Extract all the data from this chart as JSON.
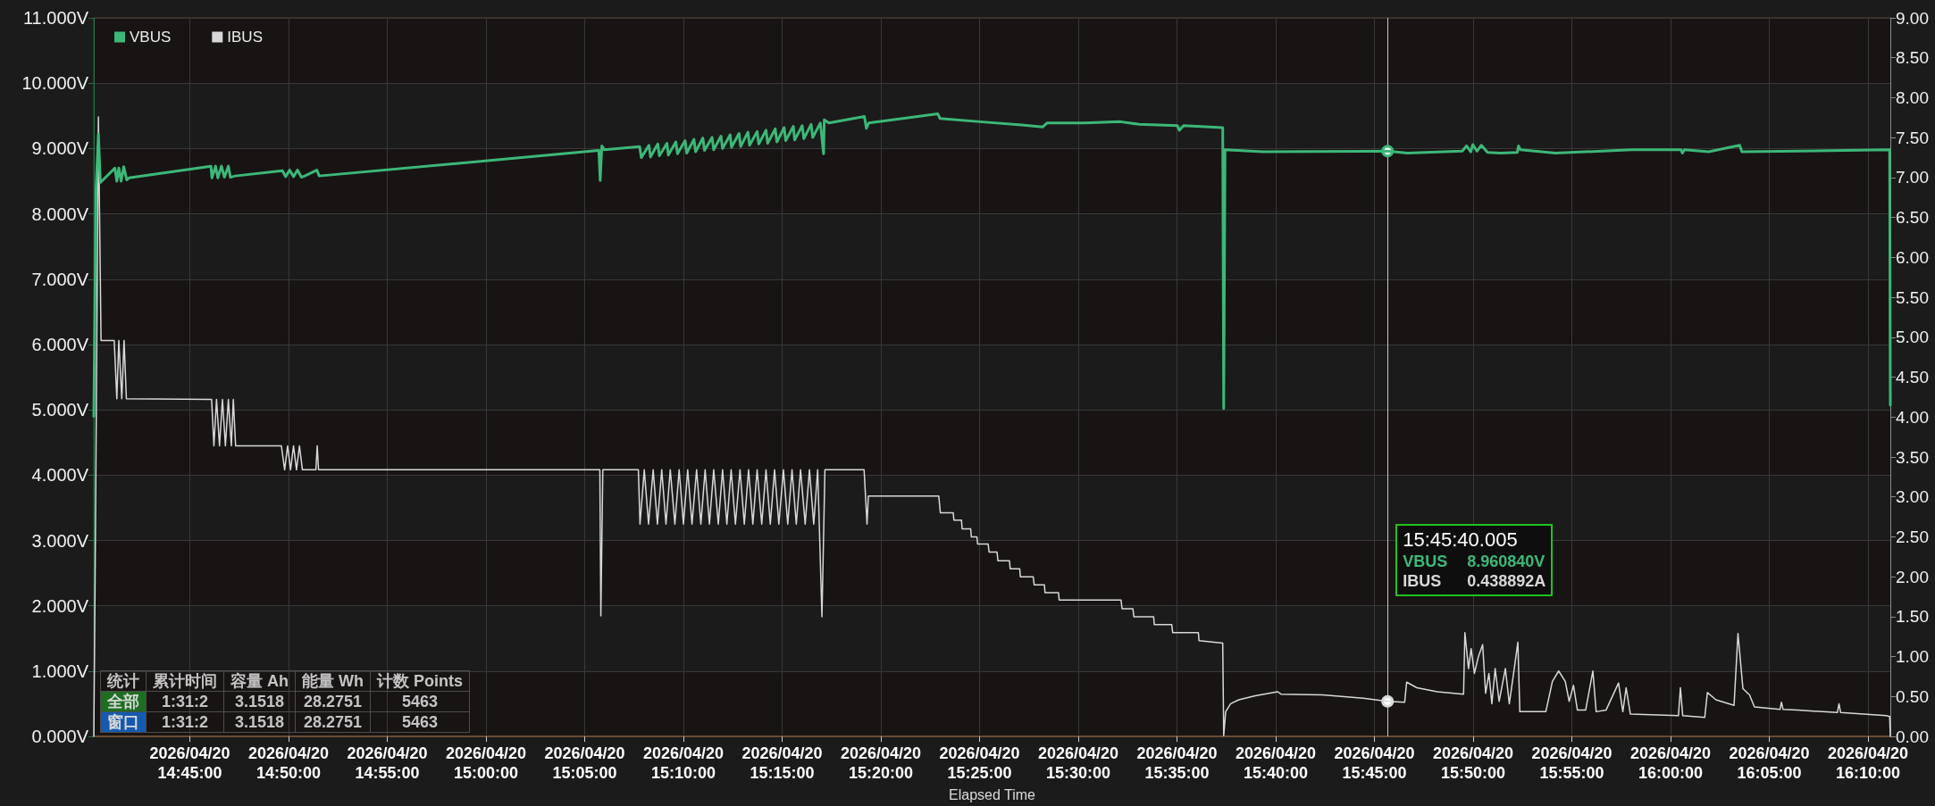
{
  "chart_data": {
    "type": "line",
    "xlabel": "Elapsed Time",
    "xlim": [
      "2026-04-20T14:40:08",
      "2026-04-20T16:11:08"
    ],
    "xticks": [
      {
        "value": "2026-04-20T14:45:00",
        "label": "2026/04/20\n14:45:00"
      },
      {
        "value": "2026-04-20T14:50:00",
        "label": "2026/04/20\n14:50:00"
      },
      {
        "value": "2026-04-20T14:55:00",
        "label": "2026/04/20\n14:55:00"
      },
      {
        "value": "2026-04-20T15:00:00",
        "label": "2026/04/20\n15:00:00"
      },
      {
        "value": "2026-04-20T15:05:00",
        "label": "2026/04/20\n15:05:00"
      },
      {
        "value": "2026-04-20T15:10:00",
        "label": "2026/04/20\n15:10:00"
      },
      {
        "value": "2026-04-20T15:15:00",
        "label": "2026/04/20\n15:15:00"
      },
      {
        "value": "2026-04-20T15:20:00",
        "label": "2026/04/20\n15:20:00"
      },
      {
        "value": "2026-04-20T15:25:00",
        "label": "2026/04/20\n15:25:00"
      },
      {
        "value": "2026-04-20T15:30:00",
        "label": "2026/04/20\n15:30:00"
      },
      {
        "value": "2026-04-20T15:35:00",
        "label": "2026/04/20\n15:35:00"
      },
      {
        "value": "2026-04-20T15:40:00",
        "label": "2026/04/20\n15:40:00"
      },
      {
        "value": "2026-04-20T15:45:00",
        "label": "2026/04/20\n15:45:00"
      },
      {
        "value": "2026-04-20T15:50:00",
        "label": "2026/04/20\n15:50:00"
      },
      {
        "value": "2026-04-20T15:55:00",
        "label": "2026/04/20\n15:55:00"
      },
      {
        "value": "2026-04-20T16:00:00",
        "label": "2026/04/20\n16:00:00"
      },
      {
        "value": "2026-04-20T16:05:00",
        "label": "2026/04/20\n16:05:00"
      },
      {
        "value": "2026-04-20T16:10:00",
        "label": "2026/04/20\n16:10:00"
      }
    ],
    "ylim": [
      0,
      11
    ],
    "yticks": [
      {
        "value": 0,
        "label": "0.000V"
      },
      {
        "value": 1,
        "label": "1.000V"
      },
      {
        "value": 2,
        "label": "2.000V"
      },
      {
        "value": 3,
        "label": "3.000V"
      },
      {
        "value": 4,
        "label": "4.000V"
      },
      {
        "value": 5,
        "label": "5.000V"
      },
      {
        "value": 6,
        "label": "6.000V"
      },
      {
        "value": 7,
        "label": "7.000V"
      },
      {
        "value": 8,
        "label": "8.000V"
      },
      {
        "value": 9,
        "label": "9.000V"
      },
      {
        "value": 10,
        "label": "10.000V"
      },
      {
        "value": 11,
        "label": "11.000V"
      }
    ],
    "y2lim": [
      0,
      9
    ],
    "y2ticks": [
      {
        "value": 0,
        "label": "0.00"
      },
      {
        "value": 0.5,
        "label": "0.50"
      },
      {
        "value": 1,
        "label": "1.00"
      },
      {
        "value": 1.5,
        "label": "1.50"
      },
      {
        "value": 2,
        "label": "2.00"
      },
      {
        "value": 2.5,
        "label": "2.50"
      },
      {
        "value": 3,
        "label": "3.00"
      },
      {
        "value": 3.5,
        "label": "3.50"
      },
      {
        "value": 4,
        "label": "4.00"
      },
      {
        "value": 4.5,
        "label": "4.50"
      },
      {
        "value": 5,
        "label": "5.00"
      },
      {
        "value": 5.5,
        "label": "5.50"
      },
      {
        "value": 6,
        "label": "6.00"
      },
      {
        "value": 6.5,
        "label": "6.50"
      },
      {
        "value": 7,
        "label": "7.00"
      },
      {
        "value": 7.5,
        "label": "7.50"
      },
      {
        "value": 8,
        "label": "8.00"
      },
      {
        "value": 8.5,
        "label": "8.50"
      },
      {
        "value": 9,
        "label": "9.00"
      }
    ],
    "grid": true,
    "legend": "top left",
    "series": [
      {
        "name": "VBUS",
        "color": "#3cb878",
        "x": [
          "2026-04-20T14:40:08",
          "2026-04-20T14:40:15",
          "2026-04-20T14:40:22",
          "2026-04-20T14:40:28",
          "2026-04-20T14:41:12",
          "2026-04-20T14:41:18",
          "2026-04-20T14:41:24",
          "2026-04-20T14:41:31",
          "2026-04-20T14:41:39",
          "2026-04-20T14:41:48",
          "2026-04-20T14:41:55",
          "2026-04-20T14:46:04",
          "2026-04-20T14:46:07",
          "2026-04-20T14:46:18",
          "2026-04-20T14:46:25",
          "2026-04-20T14:46:36",
          "2026-04-20T14:46:45",
          "2026-04-20T14:46:57",
          "2026-04-20T14:47:03",
          "2026-04-20T14:47:18",
          "2026-04-20T14:49:41",
          "2026-04-20T14:49:51",
          "2026-04-20T14:50:03",
          "2026-04-20T14:50:15",
          "2026-04-20T14:50:27",
          "2026-04-20T14:50:39",
          "2026-04-20T14:50:49",
          "2026-04-20T14:51:26",
          "2026-04-20T14:51:33",
          "2026-04-20T15:05:43",
          "2026-04-20T15:05:47",
          "2026-04-20T15:05:52",
          "2026-04-20T15:06:00",
          "2026-04-20T15:07:47",
          "2026-04-20T15:07:52",
          "2026-04-20T15:08:15",
          "2026-04-20T15:08:20",
          "2026-04-20T15:08:42",
          "2026-04-20T15:08:47",
          "2026-04-20T15:09:10",
          "2026-04-20T15:09:14",
          "2026-04-20T15:09:37",
          "2026-04-20T15:09:42",
          "2026-04-20T15:10:05",
          "2026-04-20T15:10:10",
          "2026-04-20T15:10:32",
          "2026-04-20T15:10:37",
          "2026-04-20T15:10:59",
          "2026-04-20T15:11:04",
          "2026-04-20T15:11:27",
          "2026-04-20T15:11:32",
          "2026-04-20T15:11:54",
          "2026-04-20T15:11:59",
          "2026-04-20T15:12:22",
          "2026-04-20T15:12:26",
          "2026-04-20T15:12:49",
          "2026-04-20T15:12:54",
          "2026-04-20T15:13:16",
          "2026-04-20T15:13:21",
          "2026-04-20T15:13:44",
          "2026-04-20T15:13:49",
          "2026-04-20T15:14:11",
          "2026-04-20T15:14:16",
          "2026-04-20T15:14:39",
          "2026-04-20T15:14:44",
          "2026-04-20T15:15:06",
          "2026-04-20T15:15:11",
          "2026-04-20T15:15:34",
          "2026-04-20T15:15:38",
          "2026-04-20T15:16:01",
          "2026-04-20T15:16:06",
          "2026-04-20T15:16:28",
          "2026-04-20T15:16:33",
          "2026-04-20T15:16:56",
          "2026-04-20T15:17:06",
          "2026-04-20T15:17:08",
          "2026-04-20T15:17:22",
          "2026-04-20T15:19:10",
          "2026-04-20T15:19:16",
          "2026-04-20T15:19:23",
          "2026-04-20T15:22:53",
          "2026-04-20T15:23:00",
          "2026-04-20T15:25:01",
          "2026-04-20T15:27:08",
          "2026-04-20T15:28:12",
          "2026-04-20T15:28:25",
          "2026-04-20T15:30:20",
          "2026-04-20T15:32:08",
          "2026-04-20T15:33:05",
          "2026-04-20T15:35:01",
          "2026-04-20T15:35:07",
          "2026-04-20T15:35:20",
          "2026-04-20T15:37:19",
          "2026-04-20T15:37:22",
          "2026-04-20T15:37:26",
          "2026-04-20T15:39:22",
          "2026-04-20T15:45:40",
          "2026-04-20T15:46:40",
          "2026-04-20T15:49:27",
          "2026-04-20T15:49:40",
          "2026-04-20T15:49:53",
          "2026-04-20T15:49:59",
          "2026-04-20T15:50:12",
          "2026-04-20T15:50:25",
          "2026-04-20T15:50:44",
          "2026-04-20T15:51:23",
          "2026-04-20T15:52:14",
          "2026-04-20T15:52:18",
          "2026-04-20T15:52:24",
          "2026-04-20T15:54:10",
          "2026-04-20T15:58:02",
          "2026-04-20T16:00:32",
          "2026-04-20T16:00:36",
          "2026-04-20T16:00:42",
          "2026-04-20T16:01:56",
          "2026-04-20T16:03:30",
          "2026-04-20T16:03:37",
          "2026-04-20T16:11:06",
          "2026-04-20T16:11:08"
        ],
        "values": [
          4.9,
          8.4,
          9.22,
          8.48,
          8.7,
          8.5,
          8.7,
          8.5,
          8.72,
          8.52,
          8.55,
          8.73,
          8.55,
          8.73,
          8.55,
          8.73,
          8.56,
          8.73,
          8.56,
          8.58,
          8.66,
          8.57,
          8.67,
          8.57,
          8.67,
          8.56,
          8.58,
          8.67,
          8.58,
          8.97,
          8.51,
          9.04,
          8.98,
          9.03,
          8.86,
          9.05,
          8.87,
          9.07,
          8.89,
          9.08,
          8.9,
          9.1,
          8.92,
          9.12,
          8.93,
          9.14,
          8.95,
          9.16,
          8.97,
          9.17,
          8.98,
          9.19,
          9.0,
          9.21,
          9.02,
          9.23,
          9.03,
          9.25,
          9.05,
          9.26,
          9.07,
          9.28,
          9.08,
          9.3,
          9.1,
          9.32,
          9.12,
          9.34,
          9.13,
          9.35,
          9.15,
          9.37,
          9.17,
          9.39,
          8.92,
          9.44,
          9.39,
          9.49,
          9.31,
          9.39,
          9.53,
          9.46,
          9.41,
          9.36,
          9.33,
          9.39,
          9.39,
          9.41,
          9.37,
          9.35,
          9.28,
          9.35,
          9.32,
          5.02,
          8.98,
          8.95,
          8.96,
          8.93,
          8.96,
          9.04,
          8.95,
          9.06,
          8.96,
          9.05,
          8.94,
          8.93,
          8.94,
          9.04,
          8.98,
          8.93,
          8.98,
          8.98,
          8.93,
          8.98,
          8.95,
          9.05,
          8.95,
          8.98,
          5.07
        ]
      },
      {
        "name": "IBUS",
        "color": "#d8d8d8",
        "axis": "y2",
        "x": [
          "2026-04-20T14:40:08",
          "2026-04-20T14:40:12",
          "2026-04-20T14:40:22",
          "2026-04-20T14:40:30",
          "2026-04-20T14:41:10",
          "2026-04-20T14:41:18",
          "2026-04-20T14:41:24",
          "2026-04-20T14:41:33",
          "2026-04-20T14:41:40",
          "2026-04-20T14:41:47",
          "2026-04-20T14:46:06",
          "2026-04-20T14:46:13",
          "2026-04-20T14:46:21",
          "2026-04-20T14:46:30",
          "2026-04-20T14:46:39",
          "2026-04-20T14:46:48",
          "2026-04-20T14:46:57",
          "2026-04-20T14:47:06",
          "2026-04-20T14:47:12",
          "2026-04-20T14:47:19",
          "2026-04-20T14:49:38",
          "2026-04-20T14:49:48",
          "2026-04-20T14:49:57",
          "2026-04-20T14:50:06",
          "2026-04-20T14:50:15",
          "2026-04-20T14:50:24",
          "2026-04-20T14:50:33",
          "2026-04-20T14:50:42",
          "2026-04-20T14:51:23",
          "2026-04-20T14:51:27",
          "2026-04-20T14:51:31",
          "2026-04-20T15:05:46",
          "2026-04-20T15:05:49",
          "2026-04-20T15:05:55",
          "2026-04-20T15:07:43",
          "2026-04-20T15:07:48",
          "2026-04-20T15:08:01",
          "2026-04-20T15:08:14",
          "2026-04-20T15:08:28",
          "2026-04-20T15:08:41",
          "2026-04-20T15:08:54",
          "2026-04-20T15:09:07",
          "2026-04-20T15:09:20",
          "2026-04-20T15:09:34",
          "2026-04-20T15:09:47",
          "2026-04-20T15:10:00",
          "2026-04-20T15:10:13",
          "2026-04-20T15:10:26",
          "2026-04-20T15:10:40",
          "2026-04-20T15:10:53",
          "2026-04-20T15:11:06",
          "2026-04-20T15:11:19",
          "2026-04-20T15:11:32",
          "2026-04-20T15:11:46",
          "2026-04-20T15:11:59",
          "2026-04-20T15:12:12",
          "2026-04-20T15:12:25",
          "2026-04-20T15:12:38",
          "2026-04-20T15:12:52",
          "2026-04-20T15:13:05",
          "2026-04-20T15:13:18",
          "2026-04-20T15:13:31",
          "2026-04-20T15:13:44",
          "2026-04-20T15:13:58",
          "2026-04-20T15:14:11",
          "2026-04-20T15:14:24",
          "2026-04-20T15:14:37",
          "2026-04-20T15:14:50",
          "2026-04-20T15:15:04",
          "2026-04-20T15:15:17",
          "2026-04-20T15:15:30",
          "2026-04-20T15:15:43",
          "2026-04-20T15:15:56",
          "2026-04-20T15:16:10",
          "2026-04-20T15:16:23",
          "2026-04-20T15:16:36",
          "2026-04-20T15:16:48",
          "2026-04-20T15:17:01",
          "2026-04-20T15:17:10",
          "2026-04-20T15:19:09",
          "2026-04-20T15:19:18",
          "2026-04-20T15:19:22",
          "2026-04-20T15:22:56",
          "2026-04-20T15:23:01",
          "2026-04-20T15:23:40",
          "2026-04-20T15:23:42",
          "2026-04-20T15:24:05",
          "2026-04-20T15:24:07",
          "2026-04-20T15:24:33",
          "2026-04-20T15:24:35",
          "2026-04-20T15:24:52",
          "2026-04-20T15:24:54",
          "2026-04-20T15:25:26",
          "2026-04-20T15:25:29",
          "2026-04-20T15:25:53",
          "2026-04-20T15:25:56",
          "2026-04-20T15:26:31",
          "2026-04-20T15:26:33",
          "2026-04-20T15:27:02",
          "2026-04-20T15:27:04",
          "2026-04-20T15:27:43",
          "2026-04-20T15:27:46",
          "2026-04-20T15:28:17",
          "2026-04-20T15:28:19",
          "2026-04-20T15:29:00",
          "2026-04-20T15:29:02",
          "2026-04-20T15:32:10",
          "2026-04-20T15:32:13",
          "2026-04-20T15:32:46",
          "2026-04-20T15:32:49",
          "2026-04-20T15:33:49",
          "2026-04-20T15:33:51",
          "2026-04-20T15:34:44",
          "2026-04-20T15:34:47",
          "2026-04-20T15:36:05",
          "2026-04-20T15:36:07",
          "2026-04-20T15:37:19",
          "2026-04-20T15:37:22",
          "2026-04-20T15:37:28",
          "2026-04-20T15:37:43",
          "2026-04-20T15:38:08",
          "2026-04-20T15:38:58",
          "2026-04-20T15:40:06",
          "2026-04-20T15:40:16",
          "2026-04-20T15:42:22",
          "2026-04-20T15:44:26",
          "2026-04-20T15:45:40",
          "2026-04-20T15:46:32",
          "2026-04-20T15:46:38",
          "2026-04-20T15:47:09",
          "2026-04-20T15:48:11",
          "2026-04-20T15:49:31",
          "2026-04-20T15:49:35",
          "2026-04-20T15:49:46",
          "2026-04-20T15:49:54",
          "2026-04-20T15:50:04",
          "2026-04-20T15:50:16",
          "2026-04-20T15:50:29",
          "2026-04-20T15:50:38",
          "2026-04-20T15:50:48",
          "2026-04-20T15:50:57",
          "2026-04-20T15:51:07",
          "2026-04-20T15:51:19",
          "2026-04-20T15:51:38",
          "2026-04-20T15:51:50",
          "2026-04-20T15:52:03",
          "2026-04-20T15:52:16",
          "2026-04-20T15:52:22",
          "2026-04-20T15:53:41",
          "2026-04-20T15:54:01",
          "2026-04-20T15:54:20",
          "2026-04-20T15:54:40",
          "2026-04-20T15:54:52",
          "2026-04-20T15:55:05",
          "2026-04-20T15:55:17",
          "2026-04-20T15:55:42",
          "2026-04-20T15:56:04",
          "2026-04-20T15:56:14",
          "2026-04-20T15:56:44",
          "2026-04-20T15:57:22",
          "2026-04-20T15:57:35",
          "2026-04-20T15:57:45",
          "2026-04-20T15:57:58",
          "2026-04-20T16:00:24",
          "2026-04-20T16:00:30",
          "2026-04-20T16:00:37",
          "2026-04-20T16:01:44",
          "2026-04-20T16:01:52",
          "2026-04-20T16:02:18",
          "2026-04-20T16:03:13",
          "2026-04-20T16:03:25",
          "2026-04-20T16:03:40",
          "2026-04-20T16:04:00",
          "2026-04-20T16:04:15",
          "2026-04-20T16:05:33",
          "2026-04-20T16:05:37",
          "2026-04-20T16:05:42",
          "2026-04-20T16:06:26",
          "2026-04-20T16:08:27",
          "2026-04-20T16:08:32",
          "2026-04-20T16:08:37",
          "2026-04-20T16:10:56",
          "2026-04-20T16:11:06",
          "2026-04-20T16:11:08"
        ],
        "values": [
          0,
          1.96,
          7.76,
          4.96,
          4.96,
          4.23,
          4.96,
          4.23,
          4.96,
          4.23,
          4.22,
          3.64,
          4.22,
          3.64,
          4.22,
          3.64,
          4.22,
          3.64,
          4.22,
          3.64,
          3.64,
          3.34,
          3.64,
          3.34,
          3.64,
          3.34,
          3.64,
          3.34,
          3.34,
          3.64,
          3.34,
          3.34,
          1.51,
          3.34,
          3.34,
          2.66,
          3.34,
          2.66,
          3.34,
          2.66,
          3.34,
          2.66,
          3.34,
          2.66,
          3.34,
          2.66,
          3.34,
          2.66,
          3.34,
          2.66,
          3.34,
          2.66,
          3.34,
          2.66,
          3.34,
          2.66,
          3.34,
          2.66,
          3.34,
          2.66,
          3.34,
          2.66,
          3.34,
          2.66,
          3.34,
          2.66,
          3.34,
          2.66,
          3.34,
          2.66,
          3.34,
          2.66,
          3.34,
          2.66,
          3.34,
          2.66,
          3.34,
          1.5,
          3.34,
          3.34,
          2.66,
          3.01,
          3.01,
          2.8,
          2.8,
          2.71,
          2.71,
          2.6,
          2.6,
          2.5,
          2.5,
          2.41,
          2.41,
          2.31,
          2.31,
          2.2,
          2.2,
          2.1,
          2.1,
          2.0,
          2.0,
          1.9,
          1.9,
          1.8,
          1.8,
          1.71,
          1.71,
          1.6,
          1.6,
          1.5,
          1.5,
          1.4,
          1.4,
          1.3,
          1.3,
          1.2,
          1.17,
          0.01,
          0.31,
          0.41,
          0.46,
          0.51,
          0.56,
          0.53,
          0.52,
          0.48,
          0.44,
          0.43,
          0.68,
          0.61,
          0.56,
          0.53,
          1.3,
          0.85,
          1.1,
          0.79,
          1.0,
          1.15,
          0.54,
          0.79,
          0.41,
          0.85,
          0.44,
          0.85,
          0.41,
          0.79,
          1.18,
          0.31,
          0.31,
          0.69,
          0.82,
          0.69,
          0.44,
          0.64,
          0.33,
          0.33,
          0.82,
          0.31,
          0.33,
          0.67,
          0.31,
          0.61,
          0.28,
          0.26,
          0.61,
          0.26,
          0.24,
          0.55,
          0.46,
          0.39,
          1.29,
          0.6,
          0.52,
          0.37,
          0.34,
          0.43,
          0.34,
          0.33,
          0.3,
          0.41,
          0.3,
          0.26,
          0.25,
          0
        ]
      }
    ],
    "ref_lines": [
      {
        "axis": "x",
        "value": "2026-04-20T15:45:40",
        "color": "#c8c8c8"
      }
    ],
    "annotations": [
      "统计",
      "累计时间",
      "容量 Ah",
      "能量 Wh",
      "计数 Points",
      "全部",
      "1:31:2",
      "3.1518",
      "28.2751",
      "5463",
      "窗口",
      "1:31:2",
      "3.1518",
      "28.2751",
      "5463",
      "15:45:40.005",
      "VBUS",
      "8.960840V",
      "IBUS",
      "0.438892A"
    ]
  }
}
